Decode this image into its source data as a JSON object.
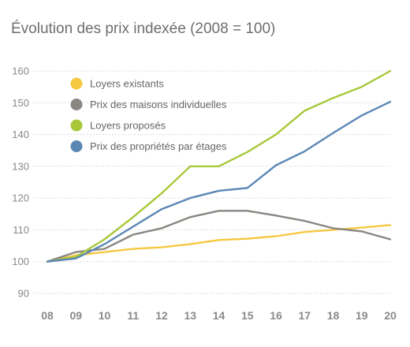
{
  "chart_data": {
    "type": "line",
    "title": "Évolution des prix indexée (2008 = 100)",
    "xlabel": "",
    "ylabel": "",
    "categories": [
      "08",
      "09",
      "10",
      "11",
      "12",
      "13",
      "14",
      "15",
      "16",
      "17",
      "18",
      "19",
      "20"
    ],
    "ylim": [
      90,
      160
    ],
    "yticks": [
      90,
      100,
      110,
      120,
      130,
      140,
      150,
      160
    ],
    "grid": "horizontal",
    "legend_position": "top-left",
    "series": [
      {
        "name": "Loyers existants",
        "color": "#f5c842",
        "values": [
          100,
          102,
          103,
          104,
          104.5,
          105.5,
          106.8,
          107.2,
          108,
          109.3,
          110,
          110.7,
          111.5
        ]
      },
      {
        "name": "Prix des maisons individuelles",
        "color": "#8a8681",
        "values": [
          100,
          103,
          104,
          108.5,
          110.5,
          114,
          116,
          116,
          114.5,
          112.8,
          110.5,
          109.5,
          107
        ]
      },
      {
        "name": "Loyers proposés",
        "color": "#a8c83a",
        "values": [
          100,
          101.5,
          107,
          114,
          121.5,
          130,
          130,
          134.5,
          140,
          147.5,
          151.5,
          155,
          160
        ]
      },
      {
        "name": "Prix des propriétés par étages",
        "color": "#5b87b5",
        "values": [
          100,
          101,
          105.5,
          111,
          116.5,
          120,
          122.3,
          123.2,
          130.3,
          134.7,
          140.5,
          146,
          150.3
        ]
      }
    ]
  }
}
